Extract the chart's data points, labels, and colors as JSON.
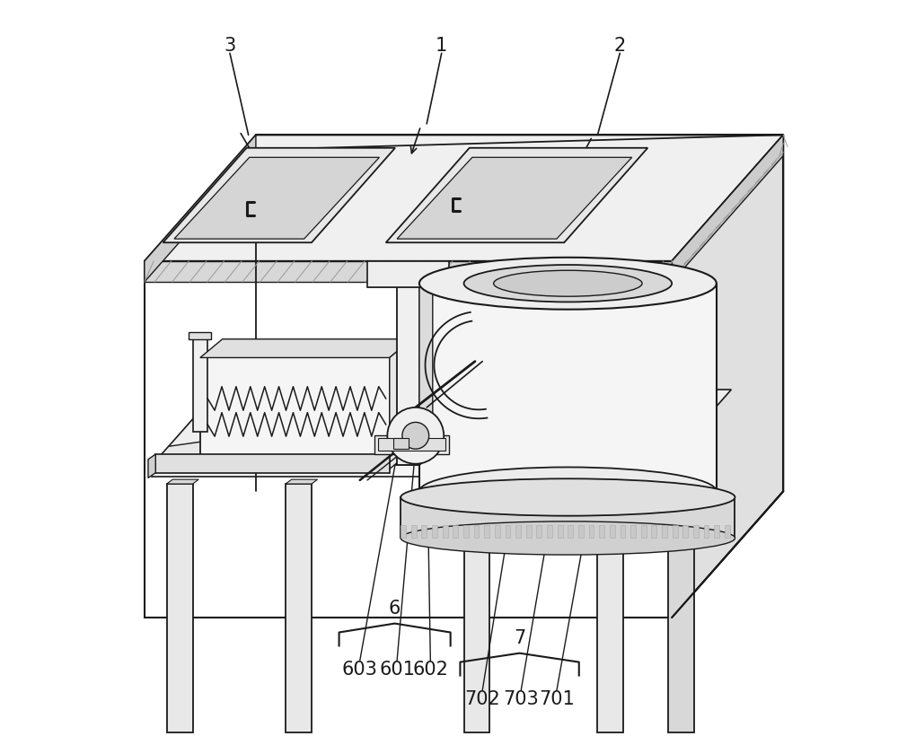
{
  "background": "#ffffff",
  "lc": "#1a1a1a",
  "figsize": [
    10.0,
    8.3
  ],
  "dpi": 100,
  "cab": {
    "fl": 0.08,
    "fr": 0.82,
    "fb": 0.2,
    "ft": 0.68,
    "ox": 0.14,
    "oy": 0.16
  },
  "label_fontsize": 15
}
